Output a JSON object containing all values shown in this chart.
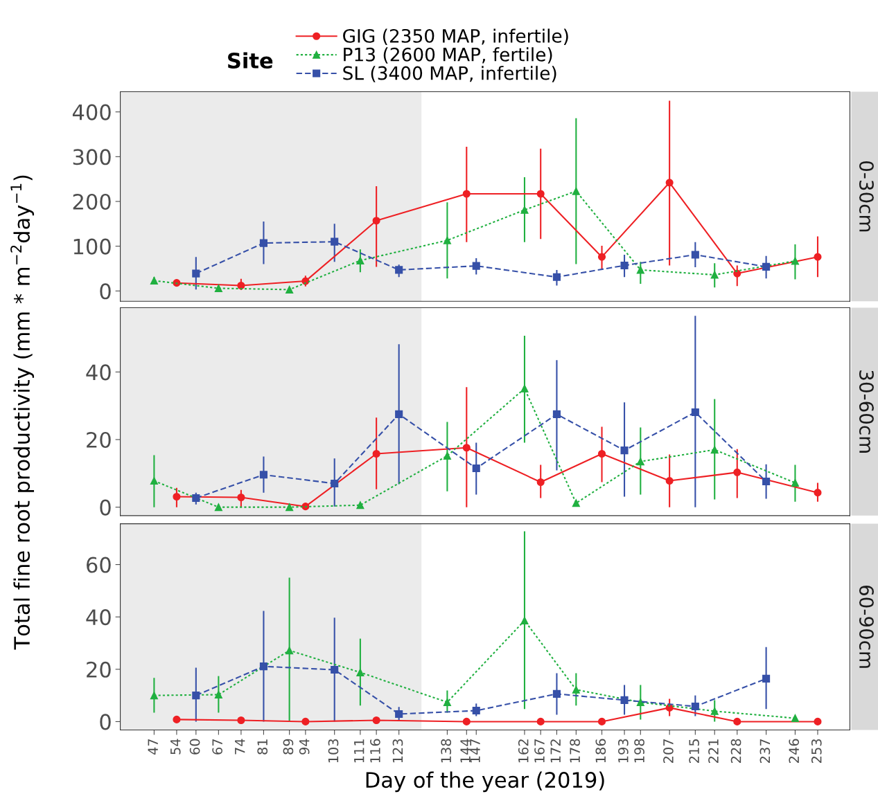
{
  "chart_data": [
    {
      "type": "line",
      "title": "0-30cm",
      "legend": "top",
      "legend_title": "Site",
      "tick_labels": "y",
      "grid": false,
      "xlim": [
        36.5,
        263
      ],
      "xticks": [
        47,
        54,
        60,
        67,
        74,
        81,
        89,
        94,
        103,
        111,
        116,
        123,
        138,
        144,
        147,
        162,
        167,
        172,
        178,
        186,
        193,
        198,
        207,
        215,
        221,
        228,
        237,
        246,
        253
      ],
      "ylim": [
        -23,
        445
      ],
      "yticks": [
        0,
        100,
        200,
        300,
        400
      ],
      "bands": [
        {
          "axis": "x",
          "from": 36.5,
          "to": 130,
          "color": "#ebebeb"
        }
      ],
      "series": [
        {
          "name": "GIG (2350 MAP, infertile)",
          "color": "#ee2024",
          "marker": "circle",
          "line_style": "solid",
          "x": [
            54,
            74,
            94,
            116,
            144,
            167,
            186,
            207,
            228,
            253
          ],
          "values": [
            18,
            12,
            22,
            157,
            217,
            217,
            76,
            242,
            39,
            76
          ],
          "errors": [
            null,
            [
              2,
              27
            ],
            [
              10,
              34
            ],
            [
              54,
              234
            ],
            [
              109,
              322
            ],
            [
              116,
              318
            ],
            [
              47,
              101
            ],
            [
              57,
              425
            ],
            [
              11,
              57
            ],
            [
              31,
              122
            ]
          ]
        },
        {
          "name": "P13 (2600 MAP, fertile)",
          "color": "#20b040",
          "marker": "triangle",
          "line_style": "dotted",
          "x": [
            47,
            67,
            89,
            111,
            138,
            162,
            178,
            198,
            221,
            246
          ],
          "values": [
            23,
            6,
            3,
            68,
            113,
            181,
            223,
            47,
            36,
            67
          ],
          "errors": [
            [
              16,
              31
            ],
            null,
            null,
            [
              42,
              93
            ],
            [
              28,
              198
            ],
            [
              109,
              254
            ],
            [
              60,
              386
            ],
            [
              16,
              65
            ],
            [
              8,
              62
            ],
            [
              26,
              104
            ]
          ]
        },
        {
          "name": "SL (3400 MAP, infertile)",
          "color": "#3650a8",
          "marker": "square",
          "line_style": "dashed",
          "x": [
            60,
            81,
            103,
            123,
            147,
            172,
            193,
            215,
            237
          ],
          "values": [
            39,
            107,
            110,
            47,
            56,
            31,
            57,
            81,
            54
          ],
          "errors": [
            [
              3,
              76
            ],
            [
              60,
              155
            ],
            [
              65,
              150
            ],
            [
              31,
              59
            ],
            [
              37,
              73
            ],
            [
              12,
              47
            ],
            [
              31,
              81
            ],
            [
              53,
              109
            ],
            [
              28,
              78
            ]
          ]
        }
      ]
    },
    {
      "type": "line",
      "title": "30-60cm",
      "ylabel": "Total fine root productivity (mm * m$^{−2}$day$^{−1}$)",
      "tick_labels": "y",
      "grid": false,
      "xlim": [
        36.5,
        263
      ],
      "xticks": [
        47,
        54,
        60,
        67,
        74,
        81,
        89,
        94,
        103,
        111,
        116,
        123,
        138,
        144,
        147,
        162,
        167,
        172,
        178,
        186,
        193,
        198,
        207,
        215,
        221,
        228,
        237,
        246,
        253
      ],
      "ylim": [
        -2.5,
        59
      ],
      "yticks": [
        0,
        20,
        40
      ],
      "bands": [
        {
          "axis": "x",
          "from": 36.5,
          "to": 130,
          "color": "#ebebeb"
        }
      ],
      "series": [
        {
          "color": "#ee2024",
          "marker": "circle",
          "line_style": "solid",
          "x": [
            54,
            74,
            94,
            116,
            144,
            167,
            186,
            207,
            228,
            253
          ],
          "values": [
            3.1,
            2.9,
            0.2,
            15.8,
            17.6,
            7.4,
            15.8,
            7.8,
            10.3,
            4.3
          ],
          "errors": [
            [
              0,
              5.7
            ],
            [
              0,
              5.1
            ],
            null,
            [
              5.3,
              26.5
            ],
            [
              0,
              35.5
            ],
            [
              2.7,
              12.5
            ],
            [
              7.4,
              23.8
            ],
            [
              0,
              15.6
            ],
            [
              2.7,
              17.2
            ],
            [
              1.6,
              7.2
            ]
          ]
        },
        {
          "color": "#20b040",
          "marker": "triangle",
          "line_style": "dotted",
          "x": [
            47,
            67,
            89,
            111,
            138,
            162,
            178,
            198,
            221,
            246
          ],
          "values": [
            7.8,
            0,
            0,
            0.6,
            15.2,
            35.1,
            1.2,
            13.5,
            17,
            7.2
          ],
          "errors": [
            [
              0,
              15.4
            ],
            null,
            null,
            null,
            [
              4.7,
              25.2
            ],
            [
              19.1,
              50.7
            ],
            null,
            [
              3.7,
              23.6
            ],
            [
              2.3,
              32
            ],
            [
              1.6,
              12.5
            ]
          ]
        },
        {
          "color": "#3650a8",
          "marker": "square",
          "line_style": "dashed",
          "x": [
            60,
            81,
            103,
            123,
            147,
            172,
            193,
            215,
            237
          ],
          "values": [
            2.7,
            9.6,
            7,
            27.5,
            11.5,
            27.5,
            16.8,
            28.1,
            7.6
          ],
          "errors": [
            [
              0.8,
              4.3
            ],
            [
              4.3,
              15
            ],
            [
              0.2,
              14.4
            ],
            [
              6.8,
              48.2
            ],
            [
              3.7,
              19.1
            ],
            [
              10.9,
              43.5
            ],
            [
              3.1,
              31
            ],
            [
              0,
              56.6
            ],
            [
              2.5,
              12.7
            ]
          ]
        }
      ]
    },
    {
      "type": "line",
      "title": "60-90cm",
      "xlabel": "Day of the year (2019)",
      "grid": false,
      "xlim": [
        36.5,
        263
      ],
      "xticks": [
        47,
        54,
        60,
        67,
        74,
        81,
        89,
        94,
        103,
        111,
        116,
        123,
        138,
        144,
        147,
        162,
        167,
        172,
        178,
        186,
        193,
        198,
        207,
        215,
        221,
        228,
        237,
        246,
        253
      ],
      "ylim": [
        -3.2,
        75.6
      ],
      "yticks": [
        0,
        20,
        40,
        60
      ],
      "bands": [
        {
          "axis": "x",
          "from": 36.5,
          "to": 130,
          "color": "#ebebeb"
        }
      ],
      "series": [
        {
          "color": "#ee2024",
          "marker": "circle",
          "line_style": "solid",
          "x": [
            54,
            74,
            94,
            116,
            144,
            167,
            186,
            207,
            228,
            253
          ],
          "values": [
            0.8,
            0.5,
            0,
            0.5,
            0,
            0,
            0,
            5.3,
            0,
            0
          ],
          "errors": [
            null,
            null,
            null,
            null,
            null,
            null,
            null,
            [
              2.1,
              8.7
            ],
            null,
            null
          ]
        },
        {
          "color": "#20b040",
          "marker": "triangle",
          "line_style": "dotted",
          "x": [
            47,
            67,
            89,
            111,
            138,
            162,
            178,
            198,
            221,
            246
          ],
          "values": [
            10,
            10.3,
            27.2,
            18.8,
            7.4,
            38.6,
            12.2,
            7.4,
            4,
            1.3
          ],
          "errors": [
            [
              3.4,
              16.7
            ],
            [
              3.4,
              17.4
            ],
            [
              0,
              55
            ],
            [
              6.1,
              31.7
            ],
            [
              3.4,
              11.9
            ],
            [
              4.8,
              72.7
            ],
            [
              6.1,
              18.5
            ],
            [
              0.8,
              14
            ],
            [
              0,
              8.2
            ],
            null
          ]
        },
        {
          "color": "#3650a8",
          "marker": "square",
          "line_style": "dashed",
          "x": [
            60,
            81,
            103,
            123,
            147,
            172,
            193,
            215,
            237
          ],
          "values": [
            10,
            21.1,
            19.8,
            2.9,
            4.2,
            10.6,
            8.2,
            5.8,
            16.4
          ],
          "errors": [
            [
              0,
              20.6
            ],
            [
              0,
              42.3
            ],
            [
              0,
              39.7
            ],
            [
              0.5,
              5.6
            ],
            [
              2.1,
              6.9
            ],
            [
              2.6,
              18.5
            ],
            [
              2.6,
              14
            ],
            [
              2.1,
              10
            ],
            [
              4.8,
              28.5
            ]
          ]
        }
      ]
    }
  ]
}
